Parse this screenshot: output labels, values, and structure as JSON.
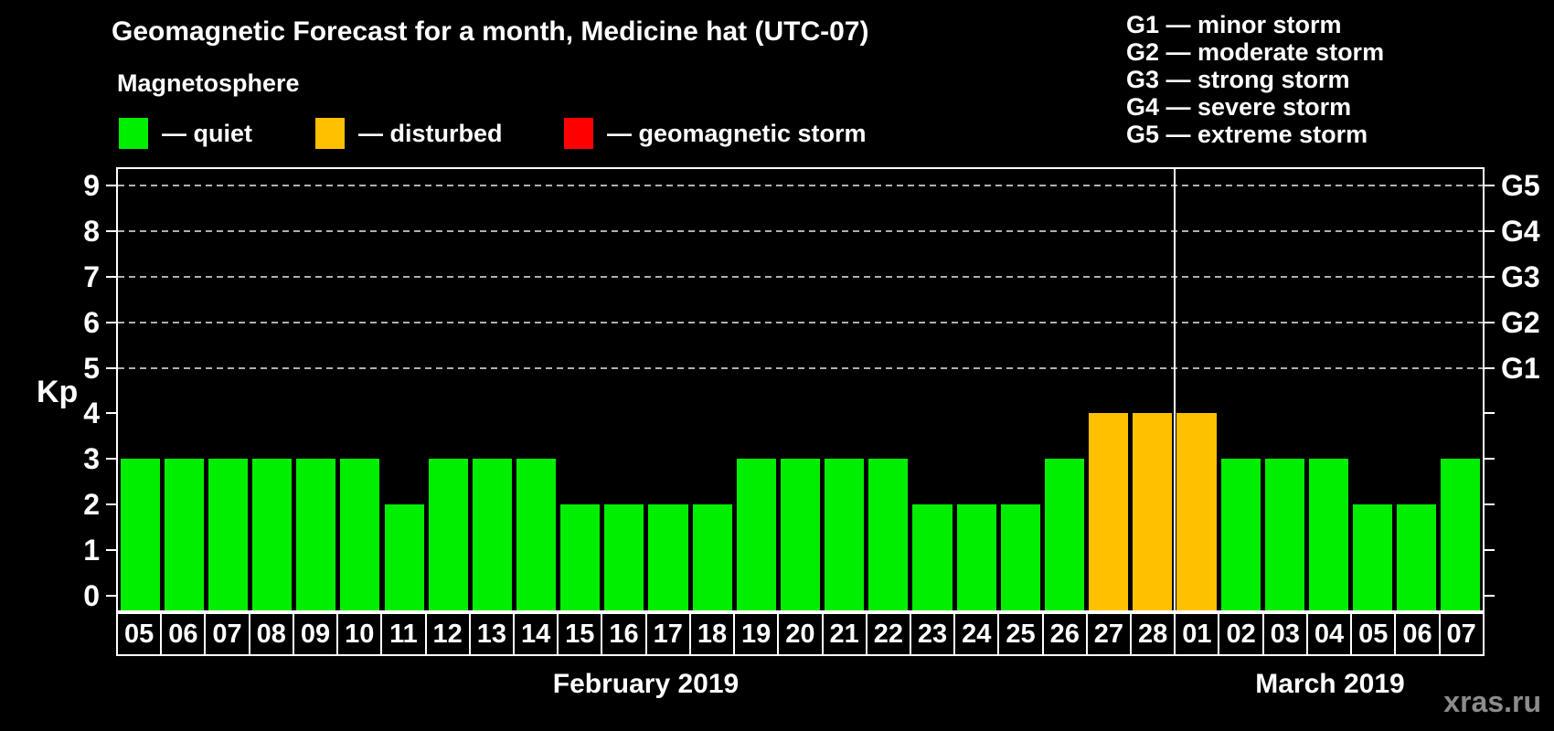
{
  "header": {
    "title": "Geomagnetic Forecast for a month, Medicine hat (UTC-07)"
  },
  "legend": {
    "heading": "Magnetosphere",
    "items": [
      {
        "label": "— quiet",
        "status": "quiet"
      },
      {
        "label": "— disturbed",
        "status": "disturbed"
      },
      {
        "label": "— geomagnetic storm",
        "status": "storm"
      }
    ]
  },
  "g_scale_legend": [
    "G1 — minor storm",
    "G2 — moderate storm",
    "G3 — strong storm",
    "G4 — severe storm",
    "G5 — extreme storm"
  ],
  "watermark": "xras.ru",
  "colors": {
    "quiet": "#00ee00",
    "disturbed": "#ffc000",
    "storm": "#ff0000",
    "background": "#000000",
    "text": "#ffffff",
    "axis": "#ffffff",
    "gridline": "#b0b0b0",
    "watermark": "#8c8c8c"
  },
  "chart_data": {
    "type": "bar",
    "title": "Geomagnetic Forecast for a month, Medicine hat (UTC-07)",
    "ylabel": "Kp",
    "ylim": [
      0,
      9
    ],
    "yticks": [
      0,
      1,
      2,
      3,
      4,
      5,
      6,
      7,
      8,
      9
    ],
    "grid_levels": [
      5,
      6,
      7,
      8,
      9
    ],
    "grid_style": "dashed",
    "legend_position": "top",
    "right_axis_labels": [
      {
        "label": "G1",
        "kp": 5
      },
      {
        "label": "G2",
        "kp": 6
      },
      {
        "label": "G3",
        "kp": 7
      },
      {
        "label": "G4",
        "kp": 8
      },
      {
        "label": "G5",
        "kp": 9
      }
    ],
    "months": [
      {
        "label": "February 2019",
        "days": 24
      },
      {
        "label": "March 2019",
        "days": 7
      }
    ],
    "bars": [
      {
        "month": "February 2019",
        "day": "05",
        "kp": 3,
        "status": "quiet"
      },
      {
        "month": "February 2019",
        "day": "06",
        "kp": 3,
        "status": "quiet"
      },
      {
        "month": "February 2019",
        "day": "07",
        "kp": 3,
        "status": "quiet"
      },
      {
        "month": "February 2019",
        "day": "08",
        "kp": 3,
        "status": "quiet"
      },
      {
        "month": "February 2019",
        "day": "09",
        "kp": 3,
        "status": "quiet"
      },
      {
        "month": "February 2019",
        "day": "10",
        "kp": 3,
        "status": "quiet"
      },
      {
        "month": "February 2019",
        "day": "11",
        "kp": 2,
        "status": "quiet"
      },
      {
        "month": "February 2019",
        "day": "12",
        "kp": 3,
        "status": "quiet"
      },
      {
        "month": "February 2019",
        "day": "13",
        "kp": 3,
        "status": "quiet"
      },
      {
        "month": "February 2019",
        "day": "14",
        "kp": 3,
        "status": "quiet"
      },
      {
        "month": "February 2019",
        "day": "15",
        "kp": 2,
        "status": "quiet"
      },
      {
        "month": "February 2019",
        "day": "16",
        "kp": 2,
        "status": "quiet"
      },
      {
        "month": "February 2019",
        "day": "17",
        "kp": 2,
        "status": "quiet"
      },
      {
        "month": "February 2019",
        "day": "18",
        "kp": 2,
        "status": "quiet"
      },
      {
        "month": "February 2019",
        "day": "19",
        "kp": 3,
        "status": "quiet"
      },
      {
        "month": "February 2019",
        "day": "20",
        "kp": 3,
        "status": "quiet"
      },
      {
        "month": "February 2019",
        "day": "21",
        "kp": 3,
        "status": "quiet"
      },
      {
        "month": "February 2019",
        "day": "22",
        "kp": 3,
        "status": "quiet"
      },
      {
        "month": "February 2019",
        "day": "23",
        "kp": 2,
        "status": "quiet"
      },
      {
        "month": "February 2019",
        "day": "24",
        "kp": 2,
        "status": "quiet"
      },
      {
        "month": "February 2019",
        "day": "25",
        "kp": 2,
        "status": "quiet"
      },
      {
        "month": "February 2019",
        "day": "26",
        "kp": 3,
        "status": "quiet"
      },
      {
        "month": "February 2019",
        "day": "27",
        "kp": 4,
        "status": "disturbed"
      },
      {
        "month": "February 2019",
        "day": "28",
        "kp": 4,
        "status": "disturbed"
      },
      {
        "month": "March 2019",
        "day": "01",
        "kp": 4,
        "status": "disturbed"
      },
      {
        "month": "March 2019",
        "day": "02",
        "kp": 3,
        "status": "quiet"
      },
      {
        "month": "March 2019",
        "day": "03",
        "kp": 3,
        "status": "quiet"
      },
      {
        "month": "March 2019",
        "day": "04",
        "kp": 3,
        "status": "quiet"
      },
      {
        "month": "March 2019",
        "day": "05",
        "kp": 2,
        "status": "quiet"
      },
      {
        "month": "March 2019",
        "day": "06",
        "kp": 2,
        "status": "quiet"
      },
      {
        "month": "March 2019",
        "day": "07",
        "kp": 3,
        "status": "quiet"
      }
    ]
  }
}
